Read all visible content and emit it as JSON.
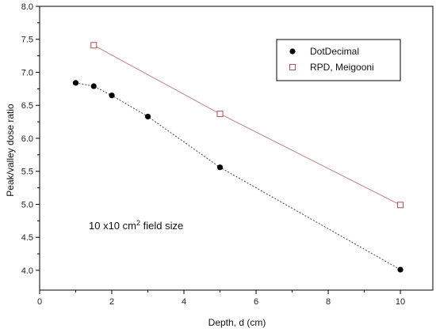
{
  "chart_data": {
    "type": "scatter",
    "title": "",
    "xlabel": "Depth, d (cm)",
    "ylabel": "Peak/valley dose ratio",
    "xlim": [
      0,
      10.9
    ],
    "ylim": [
      3.7,
      8.0
    ],
    "xticks": [
      0,
      2,
      4,
      6,
      8,
      10
    ],
    "yticks": [
      4.0,
      4.5,
      5.0,
      5.5,
      6.0,
      6.5,
      7.0,
      7.5,
      8.0
    ],
    "ytick_labels": [
      "4.0",
      "4.5",
      "5.0",
      "5.5",
      "6.0",
      "6.5",
      "7.0",
      "7.5",
      "8.0"
    ],
    "grid": false,
    "legend_position": "top-right",
    "annotation": {
      "text": "10 x10 cm",
      "superscript": "2",
      "suffix": " field size"
    },
    "series": [
      {
        "name": "DotDecimal",
        "marker": "filled-circle",
        "color": "#000000",
        "line_color": "#444444",
        "x": [
          1.0,
          1.5,
          2.0,
          3.0,
          5.0,
          10.0
        ],
        "y": [
          6.84,
          6.79,
          6.65,
          6.33,
          5.56,
          4.01
        ]
      },
      {
        "name": "RPD, Meigooni",
        "marker": "open-square",
        "color": "#b05050",
        "line_color": "#c08080",
        "x": [
          1.5,
          5.0,
          10.0
        ],
        "y": [
          7.41,
          6.37,
          4.99
        ]
      }
    ]
  }
}
